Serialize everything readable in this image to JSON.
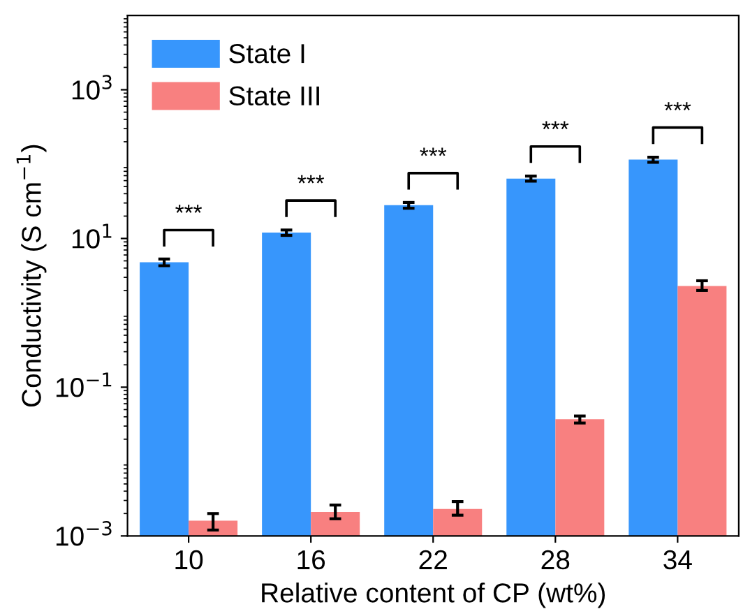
{
  "chart_data": {
    "type": "bar",
    "xlabel": "Relative content of CP (wt%)",
    "ylabel": "Conductivity (S cm$^{−1}$)",
    "categories": [
      "10",
      "16",
      "22",
      "28",
      "34"
    ],
    "series": [
      {
        "name": "State I",
        "color": "#3796fc",
        "values": [
          4.8,
          12,
          28,
          64,
          115
        ],
        "errors": [
          0.5,
          1,
          2.5,
          5,
          9
        ]
      },
      {
        "name": "State III",
        "color": "#f88080",
        "values": [
          0.0016,
          0.0021,
          0.0023,
          0.037,
          2.3
        ],
        "errors": [
          [
            0.0012,
            0.002
          ],
          [
            0.0017,
            0.0026
          ],
          [
            0.0019,
            0.0029
          ],
          [
            0.033,
            0.041
          ],
          [
            2.0,
            2.7
          ]
        ]
      }
    ],
    "log": "y",
    "ylim": [
      0.001,
      10000
    ],
    "yticks": [
      {
        "value": 0.001,
        "label": "10$^{−3}$"
      },
      {
        "value": 0.1,
        "label": "10$^{−1}$"
      },
      {
        "value": 10,
        "label": "10$^{1}$"
      },
      {
        "value": 1000,
        "label": "10$^{3}$"
      }
    ],
    "legend": "top left",
    "grid": false,
    "annotations": [
      "***",
      "***",
      "***",
      "***",
      "***"
    ]
  }
}
